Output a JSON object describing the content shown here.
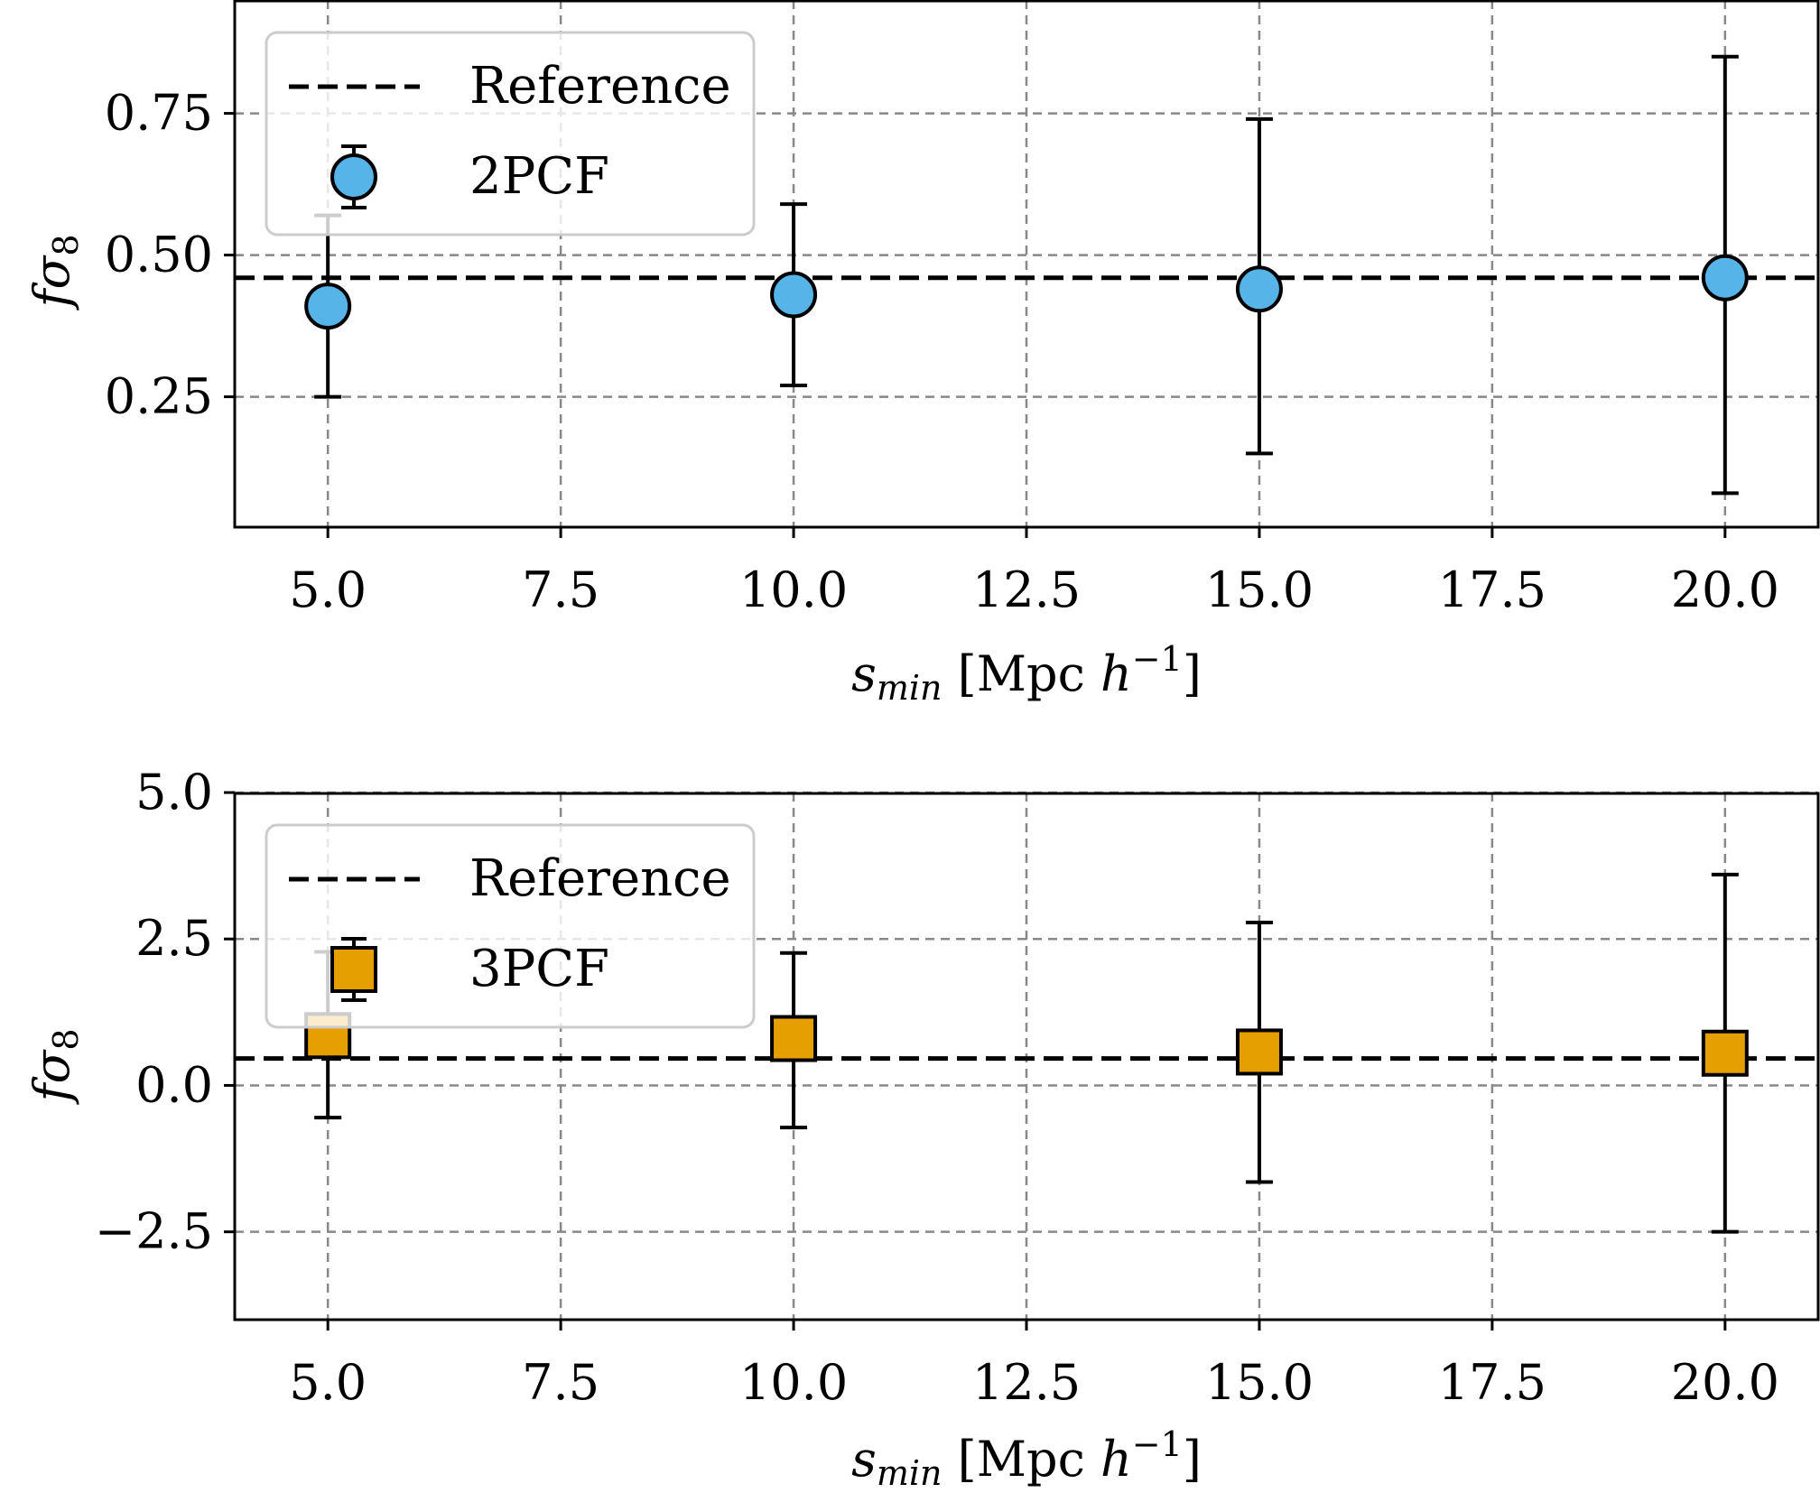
{
  "chart_data": [
    {
      "type": "scatter",
      "x": [
        5.0,
        10.0,
        15.0,
        20.0
      ],
      "xticks": [
        "5.0",
        "7.5",
        "10.0",
        "12.5",
        "15.0",
        "17.5",
        "20.0"
      ],
      "xtick_values": [
        5.0,
        7.5,
        10.0,
        12.5,
        15.0,
        17.5,
        20.0
      ],
      "xlim": [
        4.0,
        21.0
      ],
      "ylim": [
        0.02,
        0.95
      ],
      "yticks": [
        "0.25",
        "0.50",
        "0.75"
      ],
      "ytick_values": [
        0.25,
        0.5,
        0.75
      ],
      "xlabel": {
        "main": "s",
        "sub": "min",
        "rest": " [Mpc ",
        "var": "h",
        "sup": "−1",
        "close": "]"
      },
      "ylabel": {
        "main": "fσ",
        "sub": "8"
      },
      "grid": true,
      "legend_position": "top-left",
      "reference": {
        "name": "Reference",
        "value": 0.46,
        "color": "#000000"
      },
      "series": [
        {
          "name": "2PCF",
          "marker": "circle",
          "color": "#56b4e9",
          "values": [
            0.41,
            0.43,
            0.44,
            0.46
          ],
          "err_low": [
            0.25,
            0.27,
            0.15,
            0.08
          ],
          "err_high": [
            0.57,
            0.59,
            0.74,
            0.85
          ]
        }
      ]
    },
    {
      "type": "scatter",
      "x": [
        5.0,
        10.0,
        15.0,
        20.0
      ],
      "xticks": [
        "5.0",
        "7.5",
        "10.0",
        "12.5",
        "15.0",
        "17.5",
        "20.0"
      ],
      "xtick_values": [
        5.0,
        7.5,
        10.0,
        12.5,
        15.0,
        17.5,
        20.0
      ],
      "xlim": [
        4.0,
        21.0
      ],
      "ylim": [
        -4.0,
        5.0
      ],
      "yticks": [
        "5.0",
        "2.5",
        "0.0",
        "−2.5"
      ],
      "ytick_values": [
        5.0,
        2.5,
        0.0,
        -2.5
      ],
      "xlabel": {
        "main": "s",
        "sub": "min",
        "rest": " [Mpc ",
        "var": "h",
        "sup": "−1",
        "close": "]"
      },
      "ylabel": {
        "main": "fσ",
        "sub": "8"
      },
      "grid": true,
      "legend_position": "top-left",
      "reference": {
        "name": "Reference",
        "value": 0.46,
        "color": "#000000"
      },
      "series": [
        {
          "name": "3PCF",
          "marker": "square",
          "color": "#e69f00",
          "values": [
            0.85,
            0.8,
            0.57,
            0.55
          ],
          "err_low": [
            -0.55,
            -0.72,
            -1.65,
            -2.5
          ],
          "err_high": [
            2.28,
            2.26,
            2.78,
            3.6
          ]
        }
      ]
    }
  ]
}
